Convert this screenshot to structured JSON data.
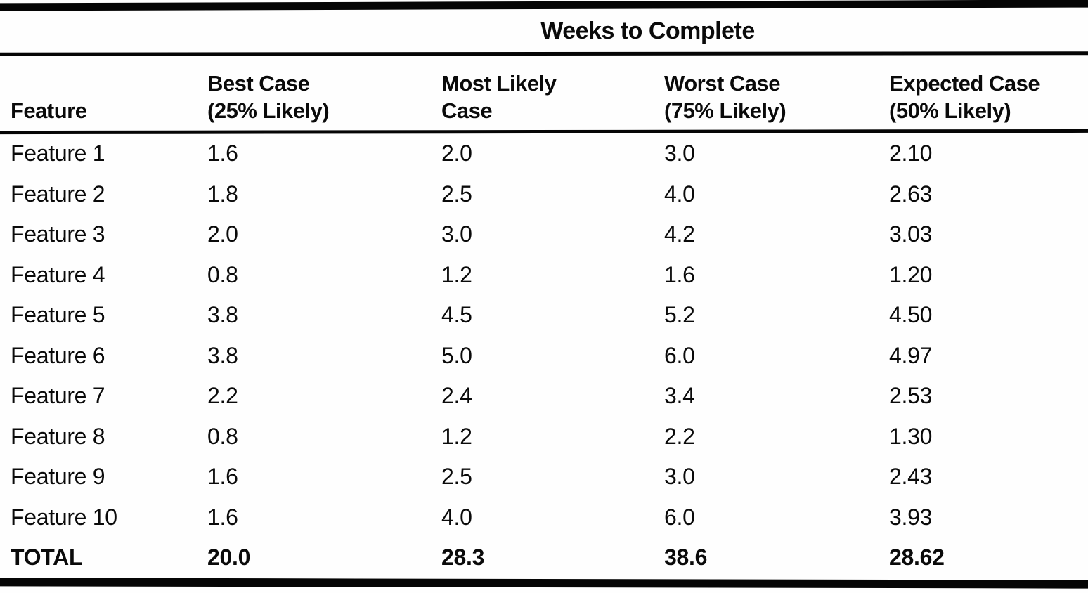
{
  "table": {
    "spanner_title": "Weeks to Complete",
    "columns": [
      {
        "line1": "Feature",
        "line2": ""
      },
      {
        "line1": "Best Case",
        "line2": "(25% Likely)"
      },
      {
        "line1": "Most Likely",
        "line2": "Case"
      },
      {
        "line1": "Worst Case",
        "line2": "(75% Likely)"
      },
      {
        "line1": "Expected Case",
        "line2": "(50% Likely)"
      }
    ],
    "rows": [
      {
        "feature": "Feature 1",
        "best": "1.6",
        "most_likely": "2.0",
        "worst": "3.0",
        "expected": "2.10"
      },
      {
        "feature": "Feature 2",
        "best": "1.8",
        "most_likely": "2.5",
        "worst": "4.0",
        "expected": "2.63"
      },
      {
        "feature": "Feature 3",
        "best": "2.0",
        "most_likely": "3.0",
        "worst": "4.2",
        "expected": "3.03"
      },
      {
        "feature": "Feature 4",
        "best": "0.8",
        "most_likely": "1.2",
        "worst": "1.6",
        "expected": "1.20"
      },
      {
        "feature": "Feature 5",
        "best": "3.8",
        "most_likely": "4.5",
        "worst": "5.2",
        "expected": "4.50"
      },
      {
        "feature": "Feature 6",
        "best": "3.8",
        "most_likely": "5.0",
        "worst": "6.0",
        "expected": "4.97"
      },
      {
        "feature": "Feature 7",
        "best": "2.2",
        "most_likely": "2.4",
        "worst": "3.4",
        "expected": "2.53"
      },
      {
        "feature": "Feature 8",
        "best": "0.8",
        "most_likely": "1.2",
        "worst": "2.2",
        "expected": "1.30"
      },
      {
        "feature": "Feature 9",
        "best": "1.6",
        "most_likely": "2.5",
        "worst": "3.0",
        "expected": "2.43"
      },
      {
        "feature": "Feature 10",
        "best": "1.6",
        "most_likely": "4.0",
        "worst": "6.0",
        "expected": "3.93"
      }
    ],
    "total_row": {
      "feature": "TOTAL",
      "best": "20.0",
      "most_likely": "28.3",
      "worst": "38.6",
      "expected": "28.62"
    }
  },
  "chart_data": {
    "type": "table",
    "title": "Weeks to Complete",
    "columns": [
      "Feature",
      "Best Case (25% Likely)",
      "Most Likely Case",
      "Worst Case (75% Likely)",
      "Expected Case (50% Likely)"
    ],
    "rows": [
      [
        "Feature 1",
        1.6,
        2.0,
        3.0,
        2.1
      ],
      [
        "Feature 2",
        1.8,
        2.5,
        4.0,
        2.63
      ],
      [
        "Feature 3",
        2.0,
        3.0,
        4.2,
        3.03
      ],
      [
        "Feature 4",
        0.8,
        1.2,
        1.6,
        1.2
      ],
      [
        "Feature 5",
        3.8,
        4.5,
        5.2,
        4.5
      ],
      [
        "Feature 6",
        3.8,
        5.0,
        6.0,
        4.97
      ],
      [
        "Feature 7",
        2.2,
        2.4,
        3.4,
        2.53
      ],
      [
        "Feature 8",
        0.8,
        1.2,
        2.2,
        1.3
      ],
      [
        "Feature 9",
        1.6,
        2.5,
        3.0,
        2.43
      ],
      [
        "Feature 10",
        1.6,
        4.0,
        6.0,
        3.93
      ],
      [
        "TOTAL",
        20.0,
        28.3,
        38.6,
        28.62
      ]
    ]
  },
  "colors": {
    "ink": "#0a0a0a",
    "paper": "#fefefe"
  }
}
